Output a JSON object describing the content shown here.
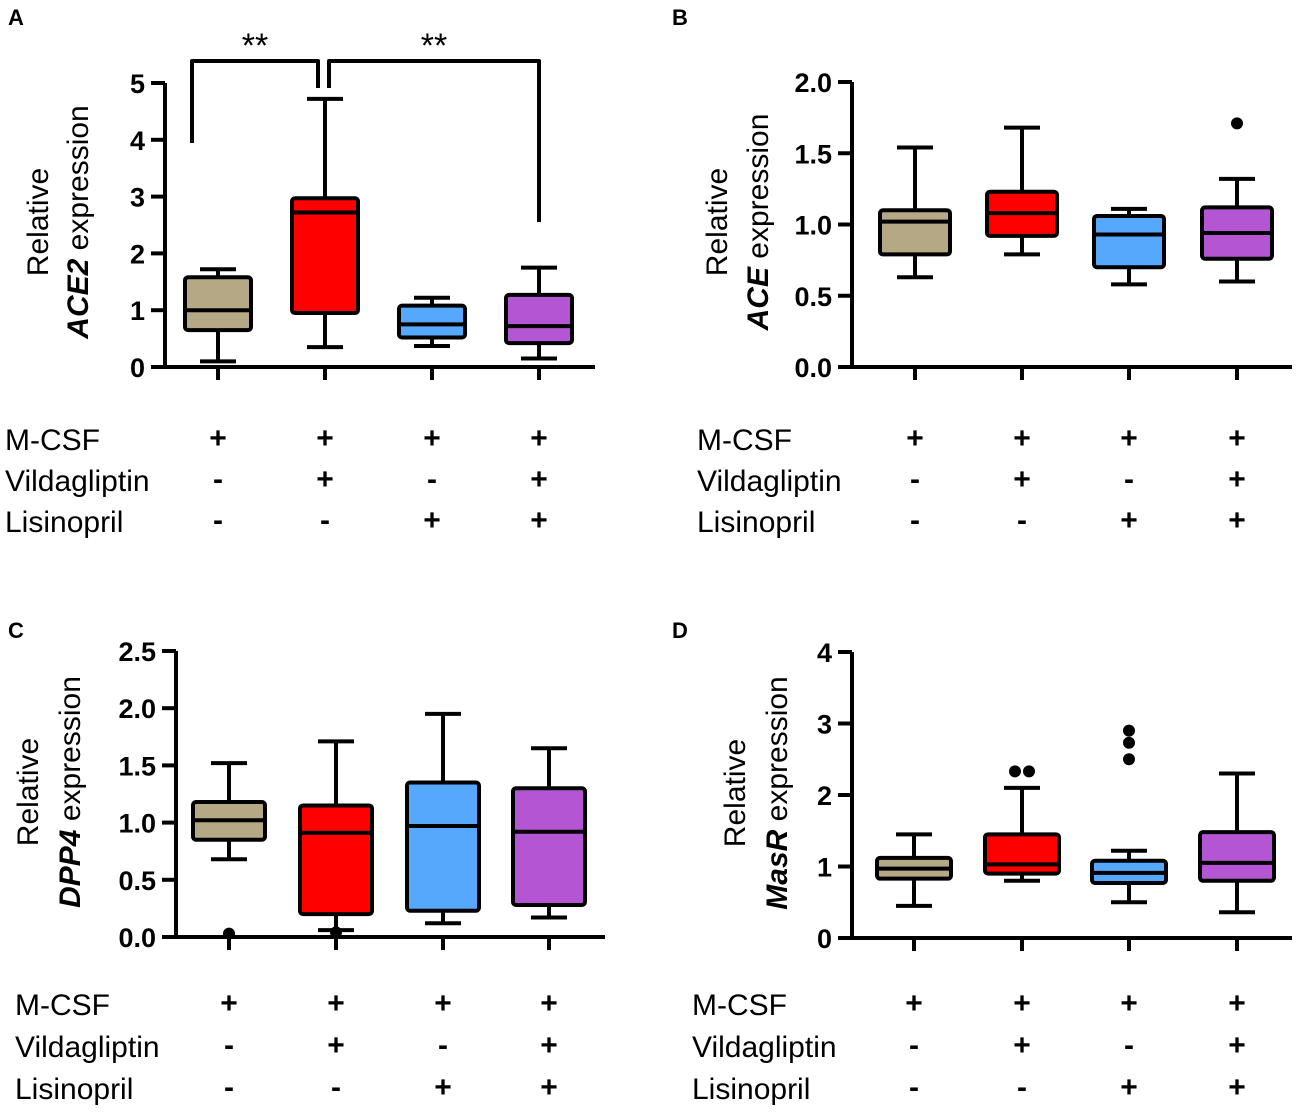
{
  "colors": {
    "M-CSF": "#b5a884",
    "M-CSF + Vildagliptin": "#fe0000",
    "M-CSF + Lisinopril": "#55a8fb",
    "M-CSF + Vildagliptin + Lisinopril": "#b456d4"
  },
  "chart_data": [
    {
      "type": "box",
      "panel": "A",
      "ylabel_line1": "Relative",
      "ylabel_gene": "ACE2",
      "ylabel_suffix": " expression",
      "ylim": [
        0,
        5
      ],
      "yticks": [
        "0",
        "1",
        "2",
        "3",
        "4",
        "5"
      ],
      "ytick_values": [
        0,
        1,
        2,
        3,
        4,
        5
      ],
      "conditions": [
        {
          "name": "M-CSF",
          "signs": [
            "+",
            "+",
            "+",
            "+"
          ]
        },
        {
          "name": "Vildagliptin",
          "signs": [
            "-",
            "+",
            "-",
            "+"
          ]
        },
        {
          "name": "Lisinopril",
          "signs": [
            "-",
            "-",
            "+",
            "+"
          ]
        }
      ],
      "groups": [
        {
          "name": "M-CSF",
          "min": 0.1,
          "q1": 0.65,
          "median": 1.0,
          "q3": 1.58,
          "max": 1.72,
          "outliers": []
        },
        {
          "name": "M-CSF + Vildagliptin",
          "min": 0.35,
          "q1": 0.95,
          "median": 2.72,
          "q3": 2.97,
          "max": 4.72,
          "outliers": []
        },
        {
          "name": "M-CSF + Lisinopril",
          "min": 0.37,
          "q1": 0.52,
          "median": 0.75,
          "q3": 1.08,
          "max": 1.22,
          "outliers": []
        },
        {
          "name": "M-CSF + Vildagliptin + Lisinopril",
          "min": 0.15,
          "q1": 0.42,
          "median": 0.72,
          "q3": 1.27,
          "max": 1.75,
          "outliers": []
        }
      ],
      "significance": [
        {
          "from": 0,
          "to": 1,
          "label": "**"
        },
        {
          "from": 1,
          "to": 3,
          "label": "**"
        }
      ]
    },
    {
      "type": "box",
      "panel": "B",
      "ylabel_line1": "Relative",
      "ylabel_gene": "ACE",
      "ylabel_suffix": " expression",
      "ylim": [
        0,
        2
      ],
      "yticks": [
        "0.0",
        "0.5",
        "1.0",
        "1.5",
        "2.0"
      ],
      "ytick_values": [
        0,
        0.5,
        1.0,
        1.5,
        2.0
      ],
      "conditions": [
        {
          "name": "M-CSF",
          "signs": [
            "+",
            "+",
            "+",
            "+"
          ]
        },
        {
          "name": "Vildagliptin",
          "signs": [
            "-",
            "+",
            "-",
            "+"
          ]
        },
        {
          "name": "Lisinopril",
          "signs": [
            "-",
            "-",
            "+",
            "+"
          ]
        }
      ],
      "groups": [
        {
          "name": "M-CSF",
          "min": 0.63,
          "q1": 0.79,
          "median": 1.02,
          "q3": 1.1,
          "max": 1.54,
          "outliers": []
        },
        {
          "name": "M-CSF + Vildagliptin",
          "min": 0.79,
          "q1": 0.92,
          "median": 1.08,
          "q3": 1.23,
          "max": 1.68,
          "outliers": []
        },
        {
          "name": "M-CSF + Lisinopril",
          "min": 0.58,
          "q1": 0.7,
          "median": 0.93,
          "q3": 1.06,
          "max": 1.11,
          "outliers": []
        },
        {
          "name": "M-CSF + Vildagliptin + Lisinopril",
          "min": 0.6,
          "q1": 0.76,
          "median": 0.94,
          "q3": 1.12,
          "max": 1.32,
          "outliers": [
            1.71
          ]
        }
      ],
      "significance": []
    },
    {
      "type": "box",
      "panel": "C",
      "ylabel_line1": "Relative",
      "ylabel_gene": "DPP4",
      "ylabel_suffix": " expression",
      "ylim": [
        0,
        2.5
      ],
      "yticks": [
        "0.0",
        "0.5",
        "1.0",
        "1.5",
        "2.0",
        "2.5"
      ],
      "ytick_values": [
        0,
        0.5,
        1.0,
        1.5,
        2.0,
        2.5
      ],
      "conditions": [
        {
          "name": "M-CSF",
          "signs": [
            "+",
            "+",
            "+",
            "+"
          ]
        },
        {
          "name": "Vildagliptin",
          "signs": [
            "-",
            "+",
            "-",
            "+"
          ]
        },
        {
          "name": "Lisinopril",
          "signs": [
            "-",
            "-",
            "+",
            "+"
          ]
        }
      ],
      "groups": [
        {
          "name": "M-CSF",
          "min": 0.68,
          "q1": 0.85,
          "median": 1.02,
          "q3": 1.18,
          "max": 1.52,
          "outliers": [
            0.03
          ]
        },
        {
          "name": "M-CSF + Vildagliptin",
          "min": 0.06,
          "q1": 0.2,
          "median": 0.91,
          "q3": 1.15,
          "max": 1.71,
          "outliers": [
            0.04
          ]
        },
        {
          "name": "M-CSF + Lisinopril",
          "min": 0.12,
          "q1": 0.23,
          "median": 0.97,
          "q3": 1.35,
          "max": 1.95,
          "outliers": []
        },
        {
          "name": "M-CSF + Vildagliptin + Lisinopril",
          "min": 0.17,
          "q1": 0.28,
          "median": 0.92,
          "q3": 1.3,
          "max": 1.65,
          "outliers": []
        }
      ],
      "significance": []
    },
    {
      "type": "box",
      "panel": "D",
      "ylabel_line1": "Relative",
      "ylabel_gene": "MasR",
      "ylabel_suffix": " expression",
      "ylim": [
        0,
        4
      ],
      "yticks": [
        "0",
        "1",
        "2",
        "3",
        "4"
      ],
      "ytick_values": [
        0,
        1,
        2,
        3,
        4
      ],
      "conditions": [
        {
          "name": "M-CSF",
          "signs": [
            "+",
            "+",
            "+",
            "+"
          ]
        },
        {
          "name": "Vildagliptin",
          "signs": [
            "-",
            "+",
            "-",
            "+"
          ]
        },
        {
          "name": "Lisinopril",
          "signs": [
            "-",
            "-",
            "+",
            "+"
          ]
        }
      ],
      "groups": [
        {
          "name": "M-CSF",
          "min": 0.45,
          "q1": 0.83,
          "median": 0.97,
          "q3": 1.12,
          "max": 1.45,
          "outliers": []
        },
        {
          "name": "M-CSF + Vildagliptin",
          "min": 0.8,
          "q1": 0.9,
          "median": 1.03,
          "q3": 1.45,
          "max": 2.1,
          "outliers": [
            2.33,
            2.33
          ]
        },
        {
          "name": "M-CSF + Lisinopril",
          "min": 0.5,
          "q1": 0.77,
          "median": 0.91,
          "q3": 1.08,
          "max": 1.22,
          "outliers": [
            2.5,
            2.73,
            2.9
          ]
        },
        {
          "name": "M-CSF + Vildagliptin + Lisinopril",
          "min": 0.36,
          "q1": 0.8,
          "median": 1.05,
          "q3": 1.48,
          "max": 2.3,
          "outliers": []
        }
      ],
      "significance": []
    }
  ]
}
